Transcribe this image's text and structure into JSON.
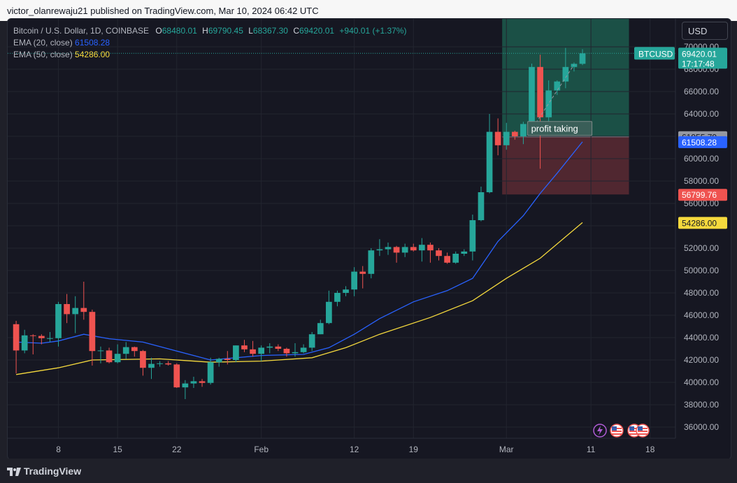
{
  "header": {
    "publish_text": "victor_olanrewaju21 published on TradingView.com, Mar 10, 2024 06:42 UTC"
  },
  "legend": {
    "symbol": "Bitcoin / U.S. Dollar, 1D, COINBASE",
    "open_label": "O",
    "open": "68480.01",
    "high_label": "H",
    "high": "69790.45",
    "low_label": "L",
    "low": "68367.30",
    "close_label": "C",
    "close": "69420.01",
    "change": "+940.01 (+1.37%)",
    "ema20_label": "EMA (20, close)",
    "ema20_value": "61508.28",
    "ema50_label": "EMA (50, close)",
    "ema50_value": "54286.00"
  },
  "currency_button": "USD",
  "annotation": "profit taking",
  "price_tags": {
    "symbol_tag": "BTCUSD",
    "last_price": "69420.01",
    "countdown": "17:17:48",
    "entry": "61955.79",
    "ema20": "61508.28",
    "stop": "56799.76",
    "ema50": "54286.00"
  },
  "footer": {
    "brand_bold": "TradingView"
  },
  "colors": {
    "up": "#26a69a",
    "down": "#ef5350",
    "ema20": "#2962ff",
    "ema50": "#f5d93d",
    "target_zone": "#1c5a4c",
    "stop_zone": "#5a2a33",
    "background": "#161722"
  },
  "icons": [
    "lightning-icon",
    "us-flag-icon",
    "us-flag-icon",
    "us-flag-icon"
  ],
  "chart_data": {
    "type": "candlestick",
    "y_ticks": [
      36000,
      38000,
      40000,
      42000,
      44000,
      46000,
      48000,
      50000,
      52000,
      54000,
      56000,
      58000,
      60000,
      62000,
      64000,
      66000,
      68000,
      70000
    ],
    "y_tick_labels": [
      "36000.00",
      "38000.00",
      "40000.00",
      "42000.00",
      "44000.00",
      "46000.00",
      "48000.00",
      "50000.00",
      "52000.00",
      "54000.00",
      "56000.00",
      "58000.00",
      "60000.00",
      "62000.00",
      "64000.00",
      "66000.00",
      "68000.00",
      "70000.00"
    ],
    "ylim": [
      35000,
      72500
    ],
    "x_ticks": [
      {
        "label": "8",
        "date": "2024-01-08"
      },
      {
        "label": "15",
        "date": "2024-01-15"
      },
      {
        "label": "22",
        "date": "2024-01-22"
      },
      {
        "label": "Feb",
        "date": "2024-02-01"
      },
      {
        "label": "12",
        "date": "2024-02-12"
      },
      {
        "label": "19",
        "date": "2024-02-19"
      },
      {
        "label": "Mar",
        "date": "2024-03-01"
      },
      {
        "label": "11",
        "date": "2024-03-11"
      },
      {
        "label": "18",
        "date": "2024-03-18"
      }
    ],
    "xlim": [
      "2024-01-02",
      "2024-03-21"
    ],
    "candles": [
      {
        "date": "2024-01-03",
        "o": 45200,
        "h": 45500,
        "l": 40800,
        "c": 42850
      },
      {
        "date": "2024-01-04",
        "o": 42850,
        "h": 44700,
        "l": 42600,
        "c": 44200
      },
      {
        "date": "2024-01-05",
        "o": 44200,
        "h": 44300,
        "l": 42500,
        "c": 44150
      },
      {
        "date": "2024-01-06",
        "o": 44150,
        "h": 44300,
        "l": 43400,
        "c": 43950
      },
      {
        "date": "2024-01-07",
        "o": 43950,
        "h": 44500,
        "l": 43600,
        "c": 43950
      },
      {
        "date": "2024-01-08",
        "o": 43950,
        "h": 47200,
        "l": 43200,
        "c": 47000
      },
      {
        "date": "2024-01-09",
        "o": 47000,
        "h": 47900,
        "l": 45300,
        "c": 46100
      },
      {
        "date": "2024-01-10",
        "o": 46100,
        "h": 47700,
        "l": 44400,
        "c": 46650
      },
      {
        "date": "2024-01-11",
        "o": 46650,
        "h": 49000,
        "l": 45600,
        "c": 46300
      },
      {
        "date": "2024-01-12",
        "o": 46300,
        "h": 46500,
        "l": 41500,
        "c": 42800
      },
      {
        "date": "2024-01-13",
        "o": 42800,
        "h": 43200,
        "l": 41700,
        "c": 42850
      },
      {
        "date": "2024-01-14",
        "o": 42850,
        "h": 43100,
        "l": 41700,
        "c": 41800
      },
      {
        "date": "2024-01-15",
        "o": 41800,
        "h": 43400,
        "l": 41700,
        "c": 42550
      },
      {
        "date": "2024-01-16",
        "o": 42550,
        "h": 43600,
        "l": 42100,
        "c": 43150
      },
      {
        "date": "2024-01-17",
        "o": 43150,
        "h": 43200,
        "l": 42300,
        "c": 42800
      },
      {
        "date": "2024-01-18",
        "o": 42800,
        "h": 42900,
        "l": 40600,
        "c": 41300
      },
      {
        "date": "2024-01-19",
        "o": 41300,
        "h": 42200,
        "l": 40300,
        "c": 41650
      },
      {
        "date": "2024-01-20",
        "o": 41650,
        "h": 41900,
        "l": 41400,
        "c": 41700
      },
      {
        "date": "2024-01-21",
        "o": 41700,
        "h": 41900,
        "l": 41500,
        "c": 41600
      },
      {
        "date": "2024-01-22",
        "o": 41600,
        "h": 41700,
        "l": 39500,
        "c": 39550
      },
      {
        "date": "2024-01-23",
        "o": 39550,
        "h": 40200,
        "l": 38500,
        "c": 39900
      },
      {
        "date": "2024-01-24",
        "o": 39900,
        "h": 40500,
        "l": 39500,
        "c": 40100
      },
      {
        "date": "2024-01-25",
        "o": 40100,
        "h": 40300,
        "l": 39600,
        "c": 39950
      },
      {
        "date": "2024-01-26",
        "o": 39950,
        "h": 42200,
        "l": 39800,
        "c": 41800
      },
      {
        "date": "2024-01-27",
        "o": 41800,
        "h": 42200,
        "l": 41400,
        "c": 42100
      },
      {
        "date": "2024-01-28",
        "o": 42100,
        "h": 42800,
        "l": 41600,
        "c": 42000
      },
      {
        "date": "2024-01-29",
        "o": 42000,
        "h": 43300,
        "l": 41800,
        "c": 43300
      },
      {
        "date": "2024-01-30",
        "o": 43300,
        "h": 43800,
        "l": 42700,
        "c": 42950
      },
      {
        "date": "2024-01-31",
        "o": 42950,
        "h": 43700,
        "l": 42300,
        "c": 42550
      },
      {
        "date": "2024-02-01",
        "o": 42550,
        "h": 43300,
        "l": 41900,
        "c": 43100
      },
      {
        "date": "2024-02-02",
        "o": 43100,
        "h": 43500,
        "l": 42600,
        "c": 43200
      },
      {
        "date": "2024-02-03",
        "o": 43200,
        "h": 43400,
        "l": 42800,
        "c": 43000
      },
      {
        "date": "2024-02-04",
        "o": 43000,
        "h": 43100,
        "l": 42300,
        "c": 42600
      },
      {
        "date": "2024-02-05",
        "o": 42600,
        "h": 43500,
        "l": 42300,
        "c": 42700
      },
      {
        "date": "2024-02-06",
        "o": 42700,
        "h": 43400,
        "l": 42600,
        "c": 43100
      },
      {
        "date": "2024-02-07",
        "o": 43100,
        "h": 44500,
        "l": 42800,
        "c": 44300
      },
      {
        "date": "2024-02-08",
        "o": 44300,
        "h": 45600,
        "l": 44300,
        "c": 45300
      },
      {
        "date": "2024-02-09",
        "o": 45300,
        "h": 48200,
        "l": 45200,
        "c": 47200
      },
      {
        "date": "2024-02-10",
        "o": 47200,
        "h": 48200,
        "l": 46800,
        "c": 48000
      },
      {
        "date": "2024-02-11",
        "o": 48000,
        "h": 48600,
        "l": 47700,
        "c": 48300
      },
      {
        "date": "2024-02-12",
        "o": 48300,
        "h": 50300,
        "l": 47700,
        "c": 49900
      },
      {
        "date": "2024-02-13",
        "o": 49900,
        "h": 50400,
        "l": 48400,
        "c": 49700
      },
      {
        "date": "2024-02-14",
        "o": 49700,
        "h": 52000,
        "l": 49300,
        "c": 51800
      },
      {
        "date": "2024-02-15",
        "o": 51800,
        "h": 52800,
        "l": 51300,
        "c": 51900
      },
      {
        "date": "2024-02-16",
        "o": 51900,
        "h": 52500,
        "l": 51400,
        "c": 52100
      },
      {
        "date": "2024-02-17",
        "o": 52100,
        "h": 52200,
        "l": 50700,
        "c": 51600
      },
      {
        "date": "2024-02-18",
        "o": 51600,
        "h": 52400,
        "l": 51200,
        "c": 52100
      },
      {
        "date": "2024-02-19",
        "o": 52100,
        "h": 52400,
        "l": 51700,
        "c": 51800
      },
      {
        "date": "2024-02-20",
        "o": 51800,
        "h": 52900,
        "l": 50800,
        "c": 52300
      },
      {
        "date": "2024-02-21",
        "o": 52300,
        "h": 52500,
        "l": 50700,
        "c": 51800
      },
      {
        "date": "2024-02-22",
        "o": 51800,
        "h": 52000,
        "l": 50900,
        "c": 51300
      },
      {
        "date": "2024-02-23",
        "o": 51300,
        "h": 51600,
        "l": 50600,
        "c": 50700
      },
      {
        "date": "2024-02-24",
        "o": 50700,
        "h": 51700,
        "l": 50600,
        "c": 51500
      },
      {
        "date": "2024-02-25",
        "o": 51500,
        "h": 51900,
        "l": 51300,
        "c": 51700
      },
      {
        "date": "2024-02-26",
        "o": 51700,
        "h": 55000,
        "l": 50900,
        "c": 54500
      },
      {
        "date": "2024-02-27",
        "o": 54500,
        "h": 57500,
        "l": 54400,
        "c": 57000
      },
      {
        "date": "2024-02-28",
        "o": 57000,
        "h": 64000,
        "l": 56900,
        "c": 62400
      },
      {
        "date": "2024-02-29",
        "o": 62400,
        "h": 63600,
        "l": 60300,
        "c": 61200
      },
      {
        "date": "2024-03-01",
        "o": 61200,
        "h": 63200,
        "l": 60800,
        "c": 62400
      },
      {
        "date": "2024-03-02",
        "o": 62400,
        "h": 62500,
        "l": 61700,
        "c": 62000
      },
      {
        "date": "2024-03-03",
        "o": 62000,
        "h": 63300,
        "l": 61300,
        "c": 63100
      },
      {
        "date": "2024-03-04",
        "o": 63100,
        "h": 68500,
        "l": 62400,
        "c": 68200
      },
      {
        "date": "2024-03-05",
        "o": 68200,
        "h": 69300,
        "l": 59100,
        "c": 63700
      },
      {
        "date": "2024-03-06",
        "o": 63700,
        "h": 67000,
        "l": 62700,
        "c": 66100
      },
      {
        "date": "2024-03-07",
        "o": 66100,
        "h": 67000,
        "l": 65700,
        "c": 66900
      },
      {
        "date": "2024-03-08",
        "o": 66900,
        "h": 69900,
        "l": 66300,
        "c": 68200
      },
      {
        "date": "2024-03-09",
        "o": 68200,
        "h": 68600,
        "l": 67800,
        "c": 68480
      },
      {
        "date": "2024-03-10",
        "o": 68480,
        "h": 69790,
        "l": 68367,
        "c": 69420
      }
    ],
    "ema20": [
      {
        "date": "2024-01-03",
        "v": 43600
      },
      {
        "date": "2024-01-06",
        "v": 43500
      },
      {
        "date": "2024-01-08",
        "v": 43700
      },
      {
        "date": "2024-01-11",
        "v": 44300
      },
      {
        "date": "2024-01-14",
        "v": 43900
      },
      {
        "date": "2024-01-18",
        "v": 43600
      },
      {
        "date": "2024-01-22",
        "v": 42800
      },
      {
        "date": "2024-01-26",
        "v": 42000
      },
      {
        "date": "2024-02-01",
        "v": 42400
      },
      {
        "date": "2024-02-06",
        "v": 42500
      },
      {
        "date": "2024-02-09",
        "v": 43100
      },
      {
        "date": "2024-02-12",
        "v": 44300
      },
      {
        "date": "2024-02-15",
        "v": 45700
      },
      {
        "date": "2024-02-19",
        "v": 47200
      },
      {
        "date": "2024-02-23",
        "v": 48200
      },
      {
        "date": "2024-02-26",
        "v": 49300
      },
      {
        "date": "2024-02-29",
        "v": 52600
      },
      {
        "date": "2024-03-03",
        "v": 54900
      },
      {
        "date": "2024-03-05",
        "v": 56900
      },
      {
        "date": "2024-03-07",
        "v": 58700
      },
      {
        "date": "2024-03-10",
        "v": 61508
      }
    ],
    "ema50": [
      {
        "date": "2024-01-03",
        "v": 40700
      },
      {
        "date": "2024-01-08",
        "v": 41300
      },
      {
        "date": "2024-01-12",
        "v": 42000
      },
      {
        "date": "2024-01-20",
        "v": 42100
      },
      {
        "date": "2024-01-26",
        "v": 41800
      },
      {
        "date": "2024-02-01",
        "v": 41900
      },
      {
        "date": "2024-02-07",
        "v": 42200
      },
      {
        "date": "2024-02-11",
        "v": 43100
      },
      {
        "date": "2024-02-15",
        "v": 44300
      },
      {
        "date": "2024-02-21",
        "v": 45800
      },
      {
        "date": "2024-02-26",
        "v": 47300
      },
      {
        "date": "2024-03-01",
        "v": 49300
      },
      {
        "date": "2024-03-05",
        "v": 51100
      },
      {
        "date": "2024-03-10",
        "v": 54286
      }
    ],
    "position": {
      "start": "2024-03-01",
      "end": "2024-03-16",
      "target": 72500,
      "entry": 61955.79,
      "stop": 56799.76
    },
    "current_price": 69420.01
  }
}
